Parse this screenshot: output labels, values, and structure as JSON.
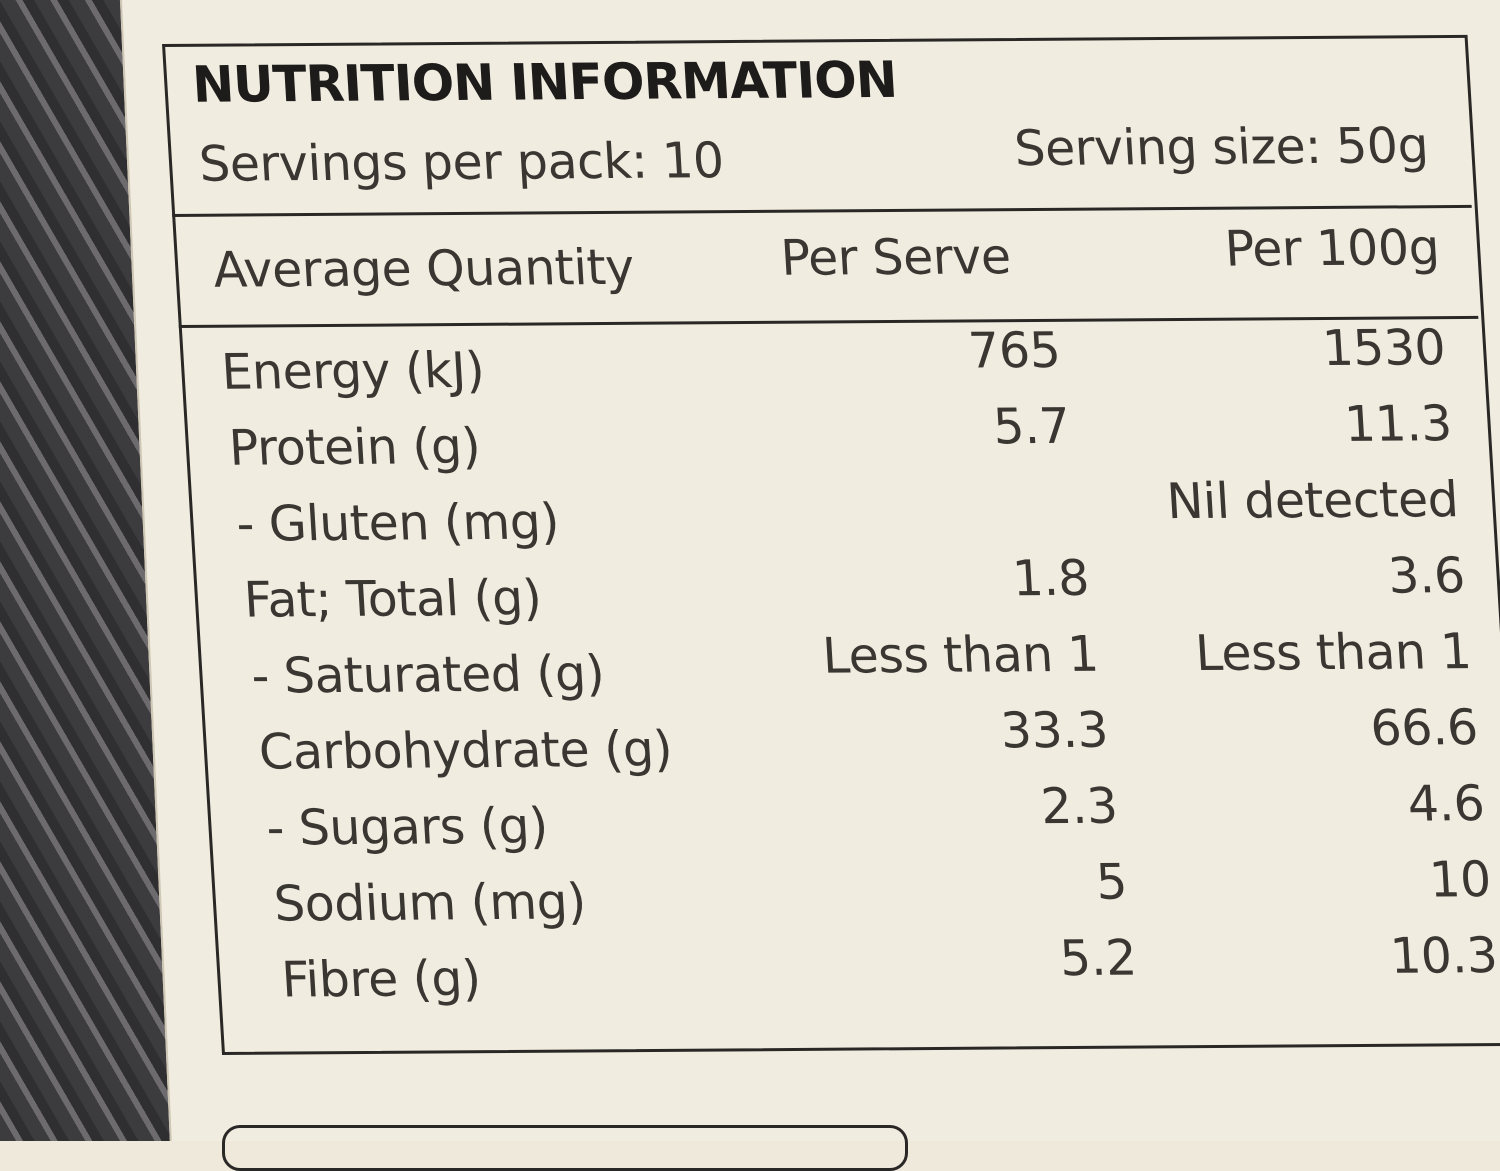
{
  "label": {
    "title": "NUTRITION INFORMATION",
    "servings_per_pack": "Servings per pack: 10",
    "serving_size": "Serving size: 50g",
    "columns": [
      "Average Quantity",
      "Per Serve",
      "Per 100g"
    ],
    "rows": [
      {
        "name": "Energy (kJ)",
        "per_serve": "765",
        "per_100g": "1530"
      },
      {
        "name": "Protein (g)",
        "per_serve": "5.7",
        "per_100g": "11.3"
      },
      {
        "name": "- Gluten (mg)",
        "per_serve": "",
        "per_100g": "Nil detected"
      },
      {
        "name": "Fat; Total (g)",
        "per_serve": "1.8",
        "per_100g": "3.6"
      },
      {
        "name": "- Saturated (g)",
        "per_serve": "Less than 1",
        "per_100g": "Less than 1"
      },
      {
        "name": "Carbohydrate (g)",
        "per_serve": "33.3",
        "per_100g": "66.6"
      },
      {
        "name": "- Sugars (g)",
        "per_serve": "2.3",
        "per_100g": "4.6"
      },
      {
        "name": "Sodium (mg)",
        "per_serve": "5",
        "per_100g": "10"
      },
      {
        "name": "Fibre (g)",
        "per_serve": "5.2",
        "per_100g": "10.3"
      }
    ]
  }
}
